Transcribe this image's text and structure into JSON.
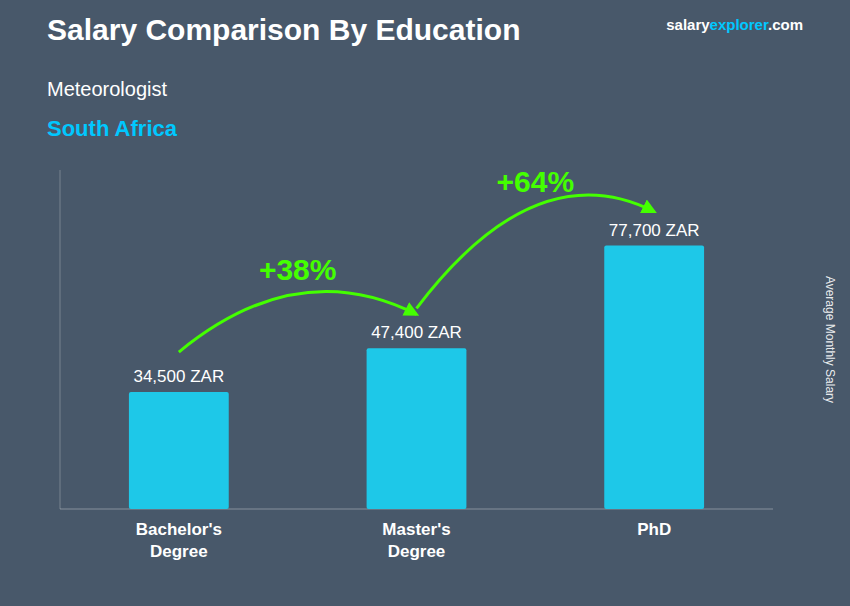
{
  "chart_data": {
    "type": "bar",
    "title": "Salary Comparison By Education",
    "subtitle": "Meteorologist",
    "country": "South Africa",
    "website": [
      "salary",
      "explorer",
      ".com"
    ],
    "ylabel": "Average Monthly Salary",
    "categories": [
      "Bachelor's\nDegree",
      "Master's\nDegree",
      "PhD"
    ],
    "values": [
      34500,
      47400,
      77700
    ],
    "value_labels": [
      "34,500 ZAR",
      "47,400 ZAR",
      "77,700 ZAR"
    ],
    "data_labels": true,
    "color": "#1EC8E8",
    "ylim": [
      0,
      100000
    ],
    "tick_labels": "x",
    "grid": false,
    "annotations": [
      {
        "text": "+38%",
        "color": "#44FF00"
      },
      {
        "text": "+64%",
        "color": "#44FF00"
      }
    ]
  }
}
